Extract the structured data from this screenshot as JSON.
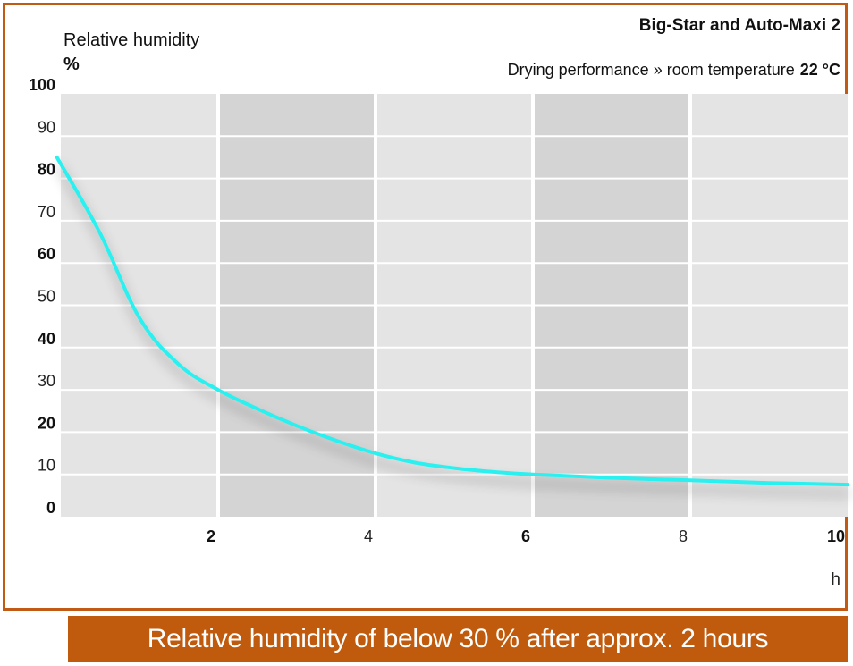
{
  "chart_data": {
    "type": "line",
    "title": "Big-Star and Auto-Maxi 2",
    "subtitle_prefix": "Drying performance » room temperature",
    "subtitle_value": "22 °C",
    "ylabel": "Relative humidity",
    "yunit": "%",
    "xunit": "h",
    "xlim": [
      0,
      10
    ],
    "ylim": [
      0,
      100
    ],
    "x_ticks": [
      {
        "value": 2,
        "label": "2",
        "bold": true
      },
      {
        "value": 4,
        "label": "4",
        "bold": false
      },
      {
        "value": 6,
        "label": "6",
        "bold": true
      },
      {
        "value": 8,
        "label": "8",
        "bold": false
      },
      {
        "value": 10,
        "label": "10",
        "bold": true
      }
    ],
    "y_ticks": [
      {
        "value": 0,
        "label": "0",
        "bold": true
      },
      {
        "value": 10,
        "label": "10",
        "bold": false
      },
      {
        "value": 20,
        "label": "20",
        "bold": true
      },
      {
        "value": 30,
        "label": "30",
        "bold": false
      },
      {
        "value": 40,
        "label": "40",
        "bold": true
      },
      {
        "value": 50,
        "label": "50",
        "bold": false
      },
      {
        "value": 60,
        "label": "60",
        "bold": true
      },
      {
        "value": 70,
        "label": "70",
        "bold": false
      },
      {
        "value": 80,
        "label": "80",
        "bold": true
      },
      {
        "value": 90,
        "label": "90",
        "bold": false
      },
      {
        "value": 100,
        "label": "100",
        "bold": true
      }
    ],
    "grid": true,
    "series": [
      {
        "x": [
          -0.05,
          0.5,
          1.0,
          1.5,
          2.0,
          2.5,
          3.0,
          3.5,
          4.0,
          4.5,
          5.0,
          5.5,
          6.0,
          7.0,
          8.0,
          9.0,
          10.0
        ],
        "values": [
          85,
          67,
          47,
          36,
          30,
          25.5,
          21.5,
          18,
          15,
          12.8,
          11.5,
          10.6,
          10,
          9.2,
          8.6,
          8.0,
          7.6
        ],
        "color": "#29f0f0"
      }
    ]
  },
  "banner": {
    "text": "Relative humidity of below 30 % after approx. 2 hours",
    "color": "#c05a0c"
  },
  "colors": {
    "frame": "#c05a14",
    "plot_light": "#e4e4e4",
    "plot_dark": "#d4d4d4",
    "grid": "#ffffff",
    "line": "#29f0f0"
  }
}
